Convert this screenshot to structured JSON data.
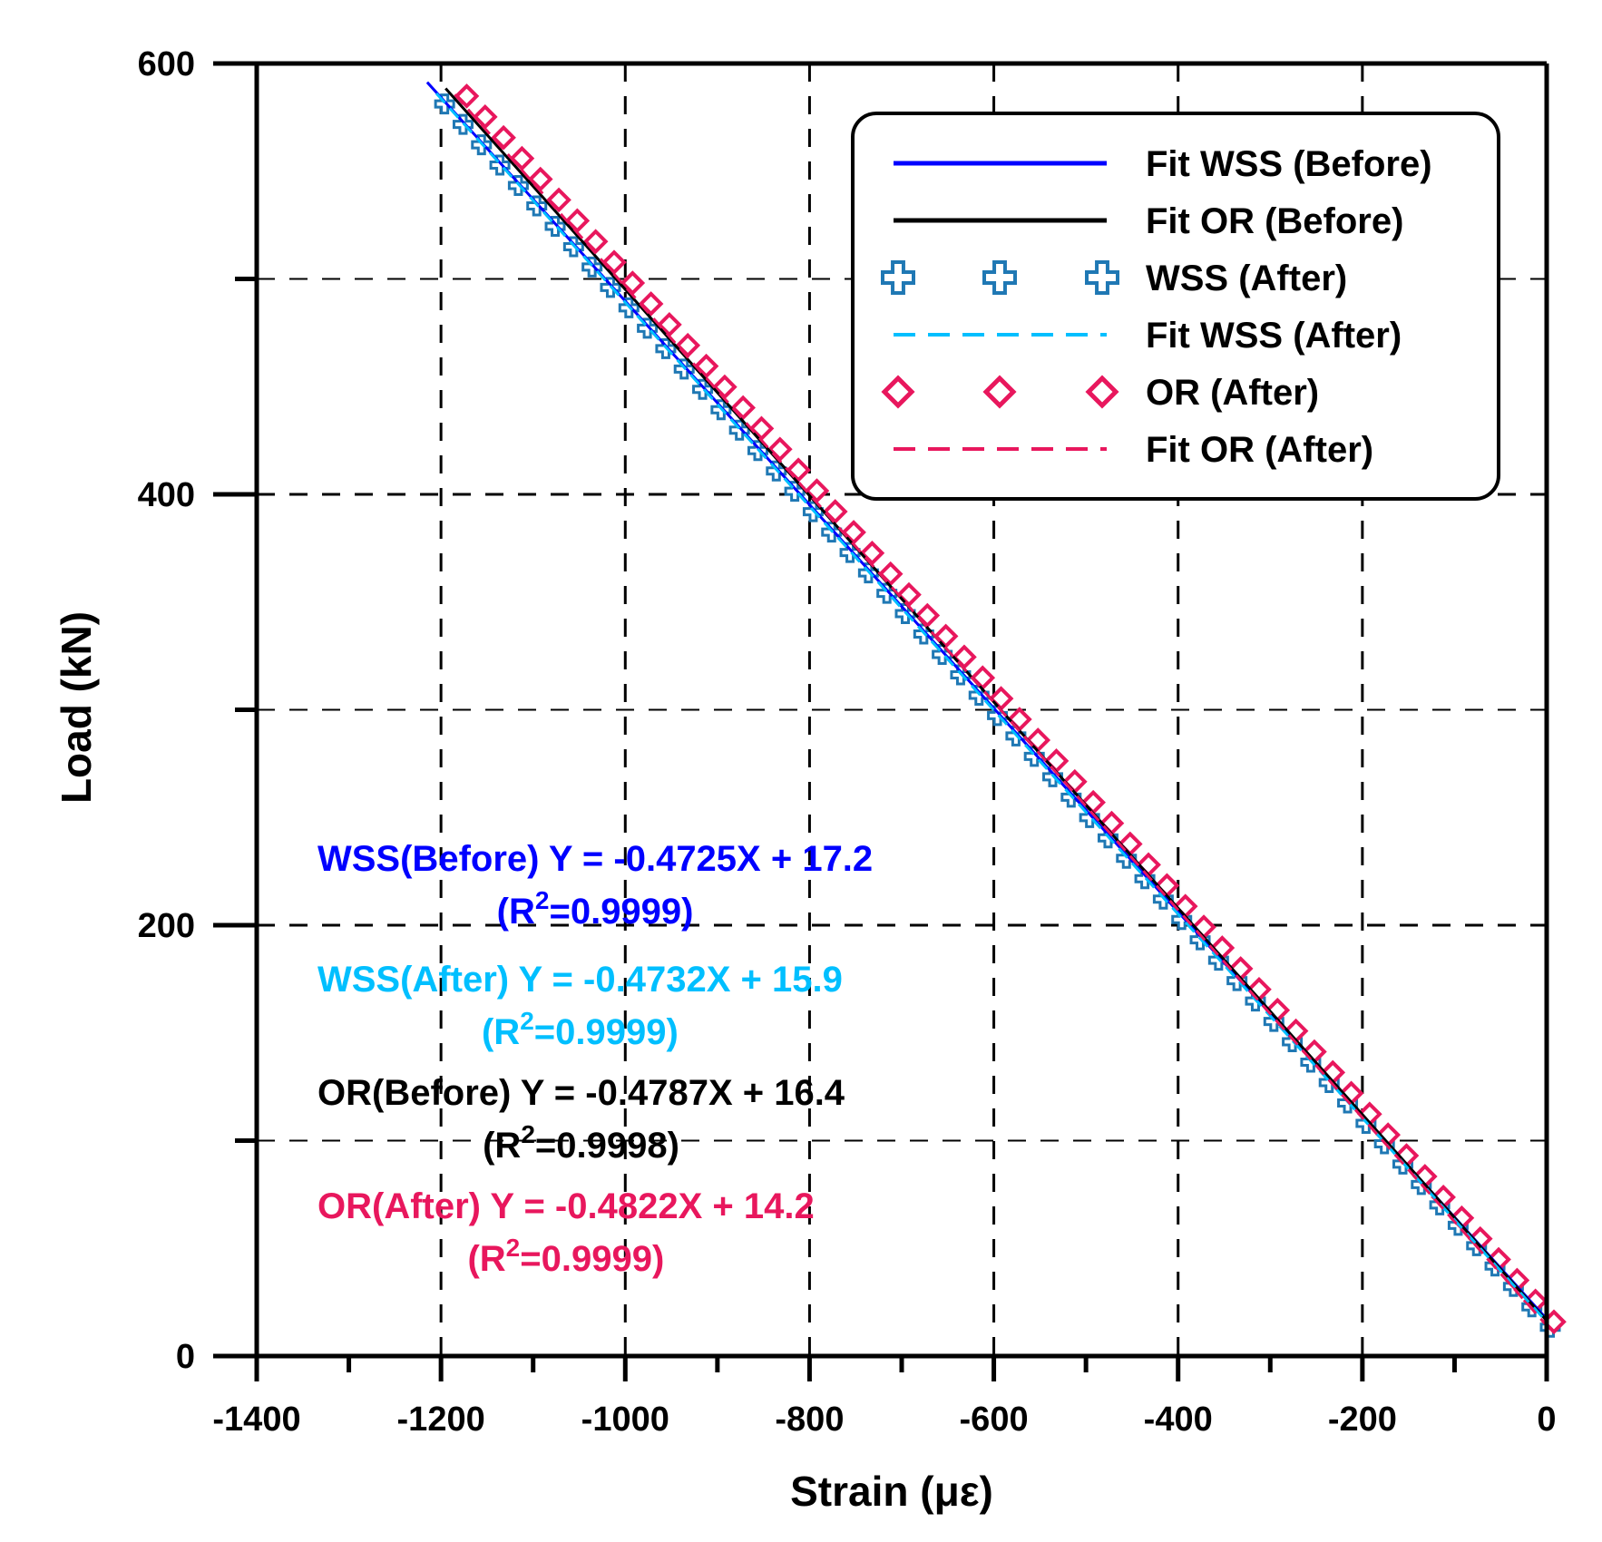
{
  "chart_data": {
    "type": "scatter",
    "xlabel": "Strain (με)",
    "ylabel": "Load (kN)",
    "xlim": [
      -1400,
      0
    ],
    "ylim": [
      0,
      600
    ],
    "x_ticks": [
      "-1400",
      "-1200",
      "-1000",
      "-800",
      "-600",
      "-400",
      "-200",
      "0"
    ],
    "y_ticks": [
      "0",
      "200",
      "400",
      "600"
    ],
    "grid": "dashed",
    "legend_position": "top-right",
    "legend": [
      {
        "label": "Fit WSS (Before)",
        "style": "solid-line",
        "color": "#0000ff"
      },
      {
        "label": "Fit OR (Before)",
        "style": "solid-line",
        "color": "#000000"
      },
      {
        "label": "WSS (After)",
        "style": "cross-marker",
        "color": "#1f78b4"
      },
      {
        "label": "Fit WSS (After)",
        "style": "dashed-line",
        "color": "#00bfff"
      },
      {
        "label": "OR (After)",
        "style": "diamond-marker",
        "color": "#e8175d"
      },
      {
        "label": "Fit OR (After)",
        "style": "dashed-line",
        "color": "#e8175d"
      }
    ],
    "series": [
      {
        "name": "Fit WSS (Before)",
        "kind": "fit",
        "slope": -0.4725,
        "intercept": 17.2,
        "x_range": [
          -1215,
          0
        ]
      },
      {
        "name": "Fit OR (Before)",
        "kind": "fit",
        "slope": -0.4787,
        "intercept": 16.4,
        "x_range": [
          -1195,
          0
        ]
      },
      {
        "name": "WSS (After)",
        "kind": "points",
        "slope": -0.4732,
        "intercept": 15.9,
        "x_range": [
          -1200,
          0
        ],
        "step": 20
      },
      {
        "name": "Fit WSS (After)",
        "kind": "fit",
        "slope": -0.4732,
        "intercept": 15.9,
        "x_range": [
          -1205,
          0
        ]
      },
      {
        "name": "OR (After)",
        "kind": "points",
        "slope": -0.4822,
        "intercept": 14.2,
        "x_range": [
          -1180,
          0
        ],
        "step": 20
      },
      {
        "name": "Fit OR (After)",
        "kind": "fit",
        "slope": -0.4822,
        "intercept": 14.2,
        "x_range": [
          -1185,
          0
        ]
      }
    ],
    "equations": [
      {
        "line1": "WSS(Before) Y = -0.4725X + 17.2",
        "r2_prefix": "(R",
        "r2_sup": "2",
        "r2_value": "=0.9999)",
        "color": "#0000ff"
      },
      {
        "line1": "WSS(After) Y = -0.4732X + 15.9",
        "r2_prefix": "(R",
        "r2_sup": "2",
        "r2_value": "=0.9999)",
        "color": "#00bfff"
      },
      {
        "line1": "OR(Before) Y = -0.4787X + 16.4",
        "r2_prefix": "(R",
        "r2_sup": "2",
        "r2_value": "=0.9998)",
        "color": "#000000"
      },
      {
        "line1": "OR(After) Y = -0.4822X + 14.2",
        "r2_prefix": "(R",
        "r2_sup": "2",
        "r2_value": "=0.9999)",
        "color": "#e8175d"
      }
    ]
  }
}
